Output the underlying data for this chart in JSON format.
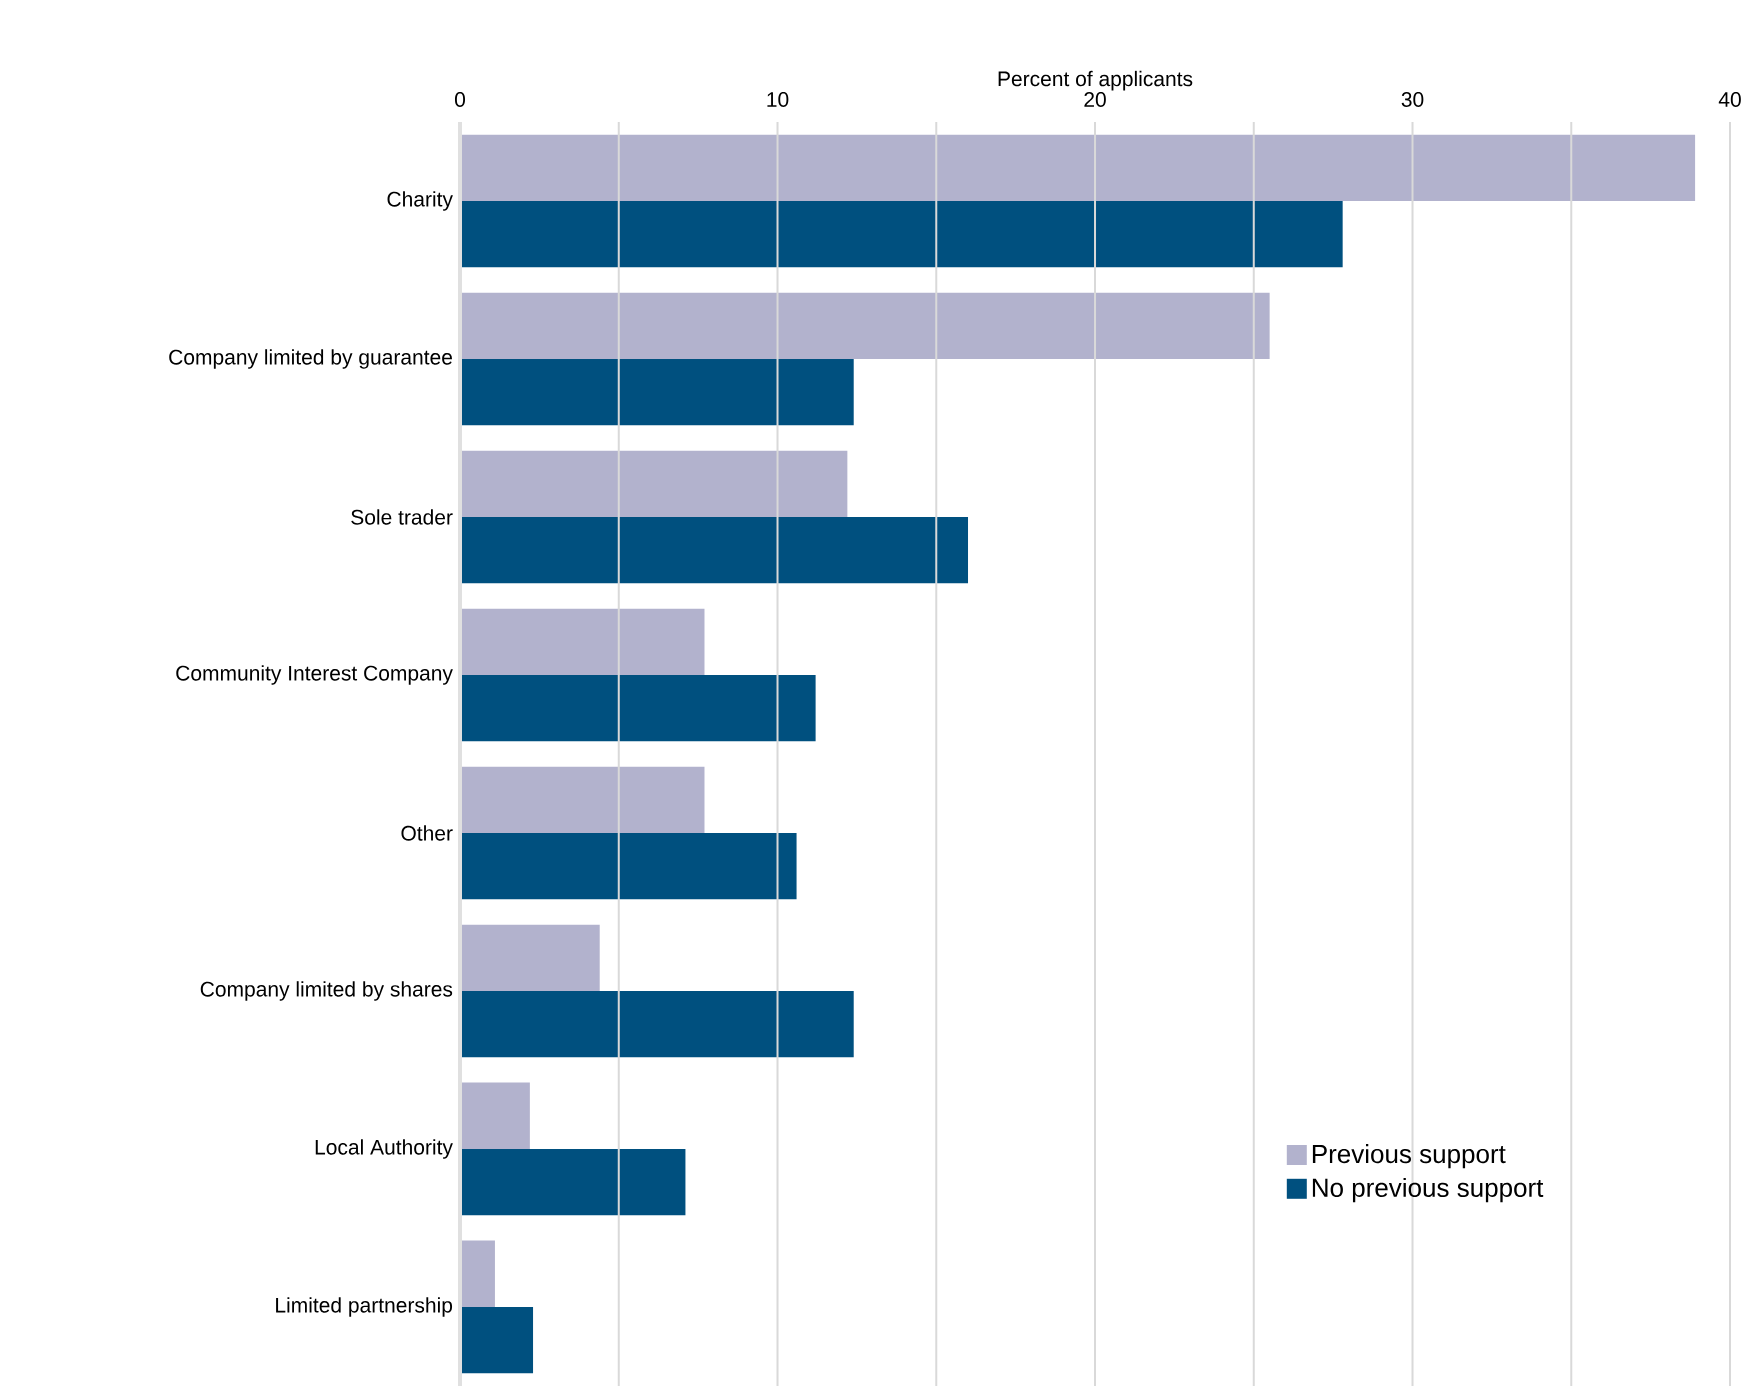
{
  "chart_data": {
    "type": "bar",
    "orientation": "horizontal",
    "xlabel": "Percent of applicants",
    "categories": [
      "Charity",
      "Company limited by guarantee",
      "Sole trader",
      "Community Interest Company",
      "Other",
      "Company limited by shares",
      "Local Authority",
      "Limited partnership"
    ],
    "series": [
      {
        "name": "Previous support",
        "color": "#b2b2cd",
        "values": [
          38.9,
          25.5,
          12.2,
          7.7,
          7.7,
          4.4,
          2.2,
          1.1
        ]
      },
      {
        "name": "No previous support",
        "color": "#00507f",
        "values": [
          27.8,
          12.4,
          16.0,
          11.2,
          10.6,
          12.4,
          7.1,
          2.3
        ]
      }
    ],
    "xlim": [
      0,
      40
    ],
    "xticks": [
      0,
      {
        "value": 5,
        "label": null
      },
      10,
      {
        "value": 15,
        "label": null
      },
      20,
      {
        "value": 25,
        "label": null
      },
      30,
      {
        "value": 35,
        "label": null
      },
      40
    ],
    "grid": "x",
    "legend": "bottom right"
  }
}
